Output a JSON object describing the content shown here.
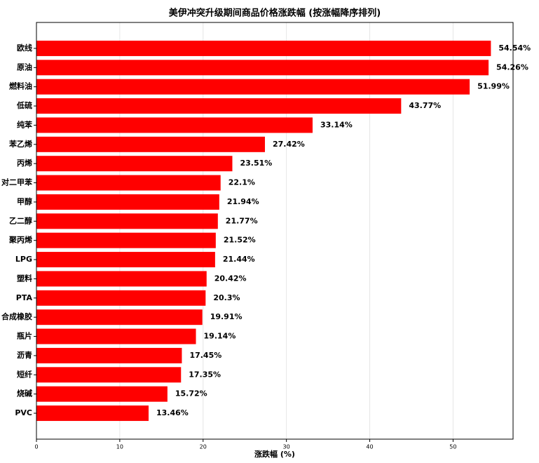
{
  "chart_data": {
    "type": "barh",
    "title": "美伊冲突升级期间商品价格涨跌幅 (按涨幅降序排列)",
    "xlabel": "涨跌幅 (%)",
    "categories": [
      "欧线",
      "原油",
      "燃料油",
      "低硫",
      "纯苯",
      "苯乙烯",
      "丙烯",
      "对二甲苯",
      "甲醇",
      "乙二醇",
      "聚丙烯",
      "LPG",
      "塑料",
      "PTA",
      "合成橡胶",
      "瓶片",
      "沥青",
      "短纤",
      "烧碱",
      "PVC"
    ],
    "values": [
      54.54,
      54.26,
      51.99,
      43.77,
      33.14,
      27.42,
      23.51,
      22.1,
      21.94,
      21.77,
      21.52,
      21.44,
      20.42,
      20.3,
      19.91,
      19.14,
      17.45,
      17.35,
      15.72,
      13.46
    ],
    "value_labels": [
      "54.54%",
      "54.26%",
      "51.99%",
      "43.77%",
      "33.14%",
      "27.42%",
      "23.51%",
      "22.1%",
      "21.94%",
      "21.77%",
      "21.52%",
      "21.44%",
      "20.42%",
      "20.3%",
      "19.91%",
      "19.14%",
      "17.45%",
      "17.35%",
      "15.72%",
      "13.46%"
    ],
    "color": "#ff0000",
    "xlim": [
      0,
      57.2
    ],
    "xticks": [
      0,
      10,
      20,
      30,
      40,
      50
    ],
    "grid": true
  }
}
